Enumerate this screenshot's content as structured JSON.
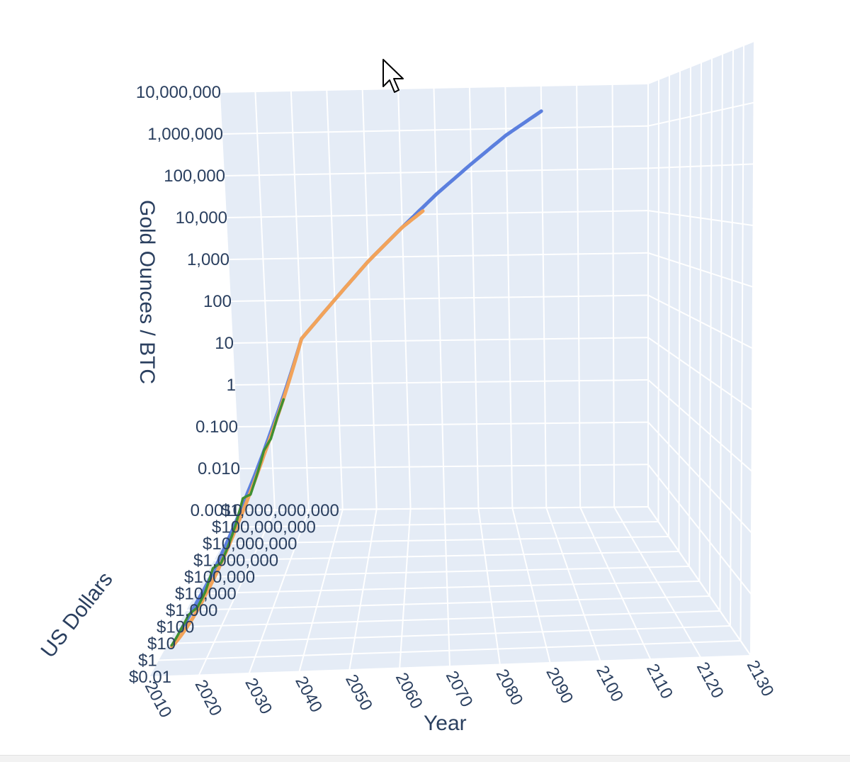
{
  "colors": {
    "background": "#ffffff",
    "pane": "#e5ecf6",
    "grid": "#ffffff",
    "text": "#2a3f5f",
    "series_blue": "#5b7fde",
    "series_orange": "#f2a35a",
    "series_green": "#3f8f32"
  },
  "chart_data": {
    "type": "line",
    "title": "",
    "x_axis": {
      "label": "Year",
      "range": [
        2010,
        2130
      ],
      "ticks": [
        "2010",
        "2020",
        "2030",
        "2040",
        "2050",
        "2060",
        "2070",
        "2080",
        "2090",
        "2100",
        "2110",
        "2120",
        "2130"
      ]
    },
    "y_axis": {
      "label": "US Dollars",
      "scale": "log",
      "ticks": [
        "$0.01",
        "$1",
        "$10",
        "$100",
        "$1,000",
        "$10,000",
        "$100,000",
        "$1,000,000",
        "$10,000,000",
        "$100,000,000",
        "$1,000,000,000"
      ]
    },
    "z_axis": {
      "label": "Gold Ounces / BTC",
      "scale": "log",
      "range": [
        0.001,
        10000000
      ],
      "ticks": [
        "0.0010",
        "0.010",
        "0.100",
        "1",
        "10",
        "100",
        "1,000",
        "10,000",
        "100,000",
        "1,000,000",
        "10,000,000"
      ]
    },
    "series": [
      {
        "color": "#5b7fde",
        "x": [
          2013,
          2015,
          2018,
          2021,
          2025,
          2030,
          2040,
          2050,
          2060,
          2070,
          2080,
          2090,
          2100
        ],
        "z": [
          0.01,
          0.06,
          0.3,
          1.2,
          4,
          12,
          100,
          800,
          5000,
          30000,
          150000,
          700000,
          2500000
        ]
      },
      {
        "color": "#f2a35a",
        "x": [
          2012,
          2014,
          2016,
          2018,
          2020,
          2022,
          2024,
          2026,
          2030,
          2040,
          2050,
          2060,
          2066
        ],
        "z": [
          0.0008,
          0.005,
          0.03,
          0.12,
          0.4,
          1,
          2.2,
          4,
          12,
          100,
          800,
          5000,
          12000
        ]
      },
      {
        "color": "#3f8f32",
        "x": [
          2012,
          2013,
          2014,
          2015,
          2016,
          2017,
          2018,
          2019,
          2020,
          2021,
          2022,
          2023,
          2024,
          2025,
          2026,
          2027
        ],
        "z": [
          0.0015,
          0.01,
          0.04,
          0.02,
          0.05,
          0.3,
          0.12,
          0.25,
          0.6,
          2,
          0.8,
          1.5,
          3,
          2.5,
          4,
          5
        ]
      }
    ]
  }
}
